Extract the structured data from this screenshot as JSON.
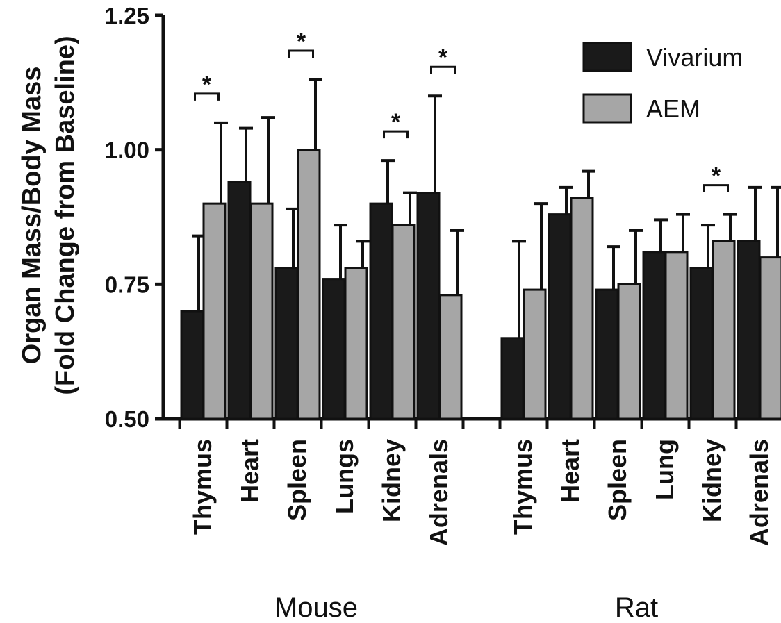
{
  "chart_data": {
    "type": "bar",
    "ylabel_line1": "Organ Mass/Body Mass",
    "ylabel_line2": "(Fold Change from Baseline)",
    "ylim": [
      0.5,
      1.25
    ],
    "yticks": [
      "0.50",
      "0.75",
      "1.00",
      "1.25"
    ],
    "groups": [
      {
        "name": "Mouse",
        "categories": [
          "Thymus",
          "Heart",
          "Spleen",
          "Lungs",
          "Kidney",
          "Adrenals"
        ],
        "series": [
          {
            "name": "Vivarium",
            "values": [
              0.7,
              0.94,
              0.78,
              0.76,
              0.9,
              0.92
            ],
            "errors": [
              0.14,
              0.1,
              0.11,
              0.1,
              0.08,
              0.18
            ]
          },
          {
            "name": "AEM",
            "values": [
              0.9,
              0.9,
              1.0,
              0.78,
              0.86,
              0.73
            ],
            "errors": [
              0.15,
              0.16,
              0.13,
              0.05,
              0.06,
              0.12
            ]
          }
        ],
        "significance": [
          true,
          false,
          true,
          false,
          true,
          true
        ]
      },
      {
        "name": "Rat",
        "categories": [
          "Thymus",
          "Heart",
          "Spleen",
          "Lung",
          "Kidney",
          "Adrenals"
        ],
        "series": [
          {
            "name": "Vivarium",
            "values": [
              0.65,
              0.88,
              0.74,
              0.81,
              0.78,
              0.83
            ],
            "errors": [
              0.18,
              0.05,
              0.08,
              0.06,
              0.08,
              0.1
            ]
          },
          {
            "name": "AEM",
            "values": [
              0.74,
              0.91,
              0.75,
              0.81,
              0.83,
              0.8
            ],
            "errors": [
              0.16,
              0.05,
              0.1,
              0.07,
              0.05,
              0.13
            ]
          }
        ],
        "significance": [
          false,
          false,
          false,
          false,
          true,
          false
        ]
      }
    ],
    "significance_marker": "*",
    "legend": {
      "position": "top-right",
      "entries": [
        "Vivarium",
        "AEM"
      ]
    },
    "colors": {
      "Vivarium": "#1a1a1a",
      "AEM": "#a6a6a6",
      "axis": "#111111"
    },
    "grid": false
  }
}
